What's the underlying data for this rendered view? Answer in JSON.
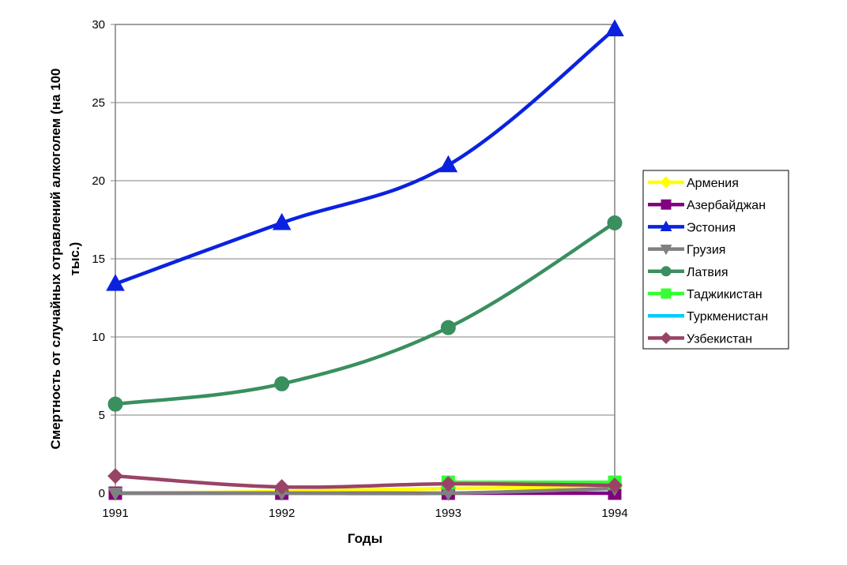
{
  "chart_data": {
    "type": "line",
    "title": "",
    "xlabel": "Годы",
    "ylabel": "Смертность от случайных отравлений алкоголем (на 100 тыс.)",
    "ylabel_lines": [
      "Смертность от случайных отравлений алкоголем (на 100",
      "тыс.)"
    ],
    "categories": [
      "1991",
      "1992",
      "1993",
      "1994"
    ],
    "ylim": [
      0,
      30
    ],
    "yticks": [
      "0",
      "5",
      "10",
      "15",
      "20",
      "25",
      "30"
    ],
    "grid": "horizontal",
    "legend_position": "right",
    "series": [
      {
        "name": "Армения",
        "color": "#ffff00",
        "marker": "diamond",
        "values": [
          0.0,
          0.1,
          0.3,
          0.4
        ]
      },
      {
        "name": "Азербайджан",
        "color": "#800080",
        "marker": "square",
        "values": [
          0.0,
          0.0,
          0.0,
          0.0
        ]
      },
      {
        "name": "Эстония",
        "color": "#0a22e0",
        "marker": "triangle",
        "values": [
          13.4,
          17.3,
          21.0,
          29.7
        ]
      },
      {
        "name": "Грузия",
        "color": "#808080",
        "marker": "triangle-down",
        "values": [
          0.0,
          0.0,
          0.0,
          0.3
        ]
      },
      {
        "name": "Латвия",
        "color": "#3a8f5e",
        "marker": "circle",
        "values": [
          5.7,
          7.0,
          10.6,
          17.3
        ]
      },
      {
        "name": "Таджикистан",
        "color": "#33ff33",
        "marker": "square",
        "values": [
          null,
          null,
          0.7,
          0.7
        ]
      },
      {
        "name": "Туркменистан",
        "color": "#00ccff",
        "marker": "none",
        "values": [
          null,
          null,
          null,
          null
        ]
      },
      {
        "name": "Узбекистан",
        "color": "#994466",
        "marker": "diamond",
        "values": [
          1.1,
          0.4,
          0.6,
          0.5
        ]
      }
    ]
  }
}
